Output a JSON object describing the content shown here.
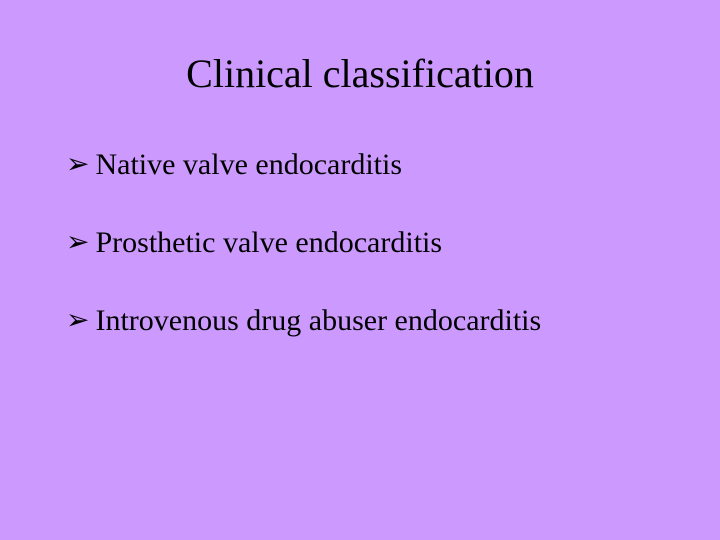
{
  "slide": {
    "background_color": "#cc99ff",
    "title": "Clinical classification",
    "title_fontsize": 40,
    "title_color": "#000000",
    "bullet_marker": "➢",
    "bullet_color": "#000000",
    "bullet_fontsize": 30,
    "text_color": "#000000",
    "items": [
      {
        "text": "Native valve endocarditis"
      },
      {
        "text": "Prosthetic valve endocarditis"
      },
      {
        "text": "Introvenous drug abuser endocarditis"
      }
    ]
  }
}
